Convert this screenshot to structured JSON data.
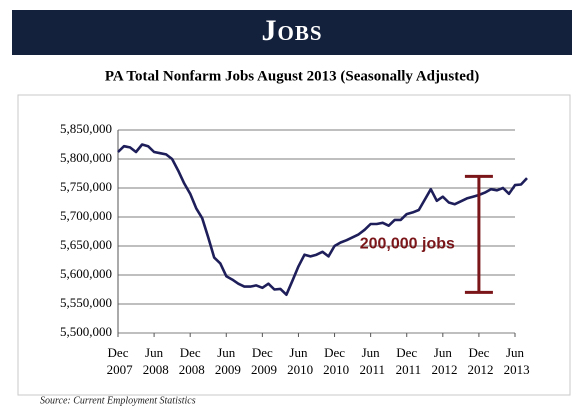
{
  "header": {
    "title": "Jobs"
  },
  "chart_data": {
    "type": "line",
    "title": "PA Total Nonfarm Jobs August 2013 (Seasonally Adjusted)",
    "categories": [
      "Dec 2007",
      null,
      null,
      null,
      null,
      null,
      "Jun 2008",
      null,
      null,
      null,
      null,
      null,
      "Dec 2008",
      null,
      null,
      null,
      null,
      null,
      "Jun 2009",
      null,
      null,
      null,
      null,
      null,
      "Dec 2009",
      null,
      null,
      null,
      null,
      null,
      "Jun 2010",
      null,
      null,
      null,
      null,
      null,
      "Dec 2010",
      null,
      null,
      null,
      null,
      null,
      "Jun 2011",
      null,
      null,
      null,
      null,
      null,
      "Dec 2011",
      null,
      null,
      null,
      null,
      null,
      "Jun 2012",
      null,
      null,
      null,
      null,
      null,
      "Dec 2012",
      null,
      null,
      null,
      null,
      null,
      "Jun 2013",
      null,
      null
    ],
    "series": [
      {
        "name": "PA Total Nonfarm Jobs",
        "color": "#1e1e5a",
        "values": [
          5812000,
          5822000,
          5820000,
          5812000,
          5825000,
          5822000,
          5812000,
          5810000,
          5808000,
          5800000,
          5780000,
          5758000,
          5740000,
          5715000,
          5698000,
          5665000,
          5630000,
          5620000,
          5598000,
          5592000,
          5585000,
          5580000,
          5580000,
          5582000,
          5578000,
          5585000,
          5575000,
          5576000,
          5566000,
          5590000,
          5615000,
          5635000,
          5632000,
          5635000,
          5640000,
          5632000,
          5650000,
          5656000,
          5660000,
          5665000,
          5670000,
          5678000,
          5688000,
          5688000,
          5690000,
          5685000,
          5695000,
          5695000,
          5705000,
          5708000,
          5712000,
          5730000,
          5748000,
          5728000,
          5735000,
          5725000,
          5722000,
          5727000,
          5732000,
          5735000,
          5738000,
          5742000,
          5748000,
          5746000,
          5750000,
          5740000,
          5755000,
          5756000,
          5767000
        ]
      }
    ],
    "ylim": [
      5500000,
      5850000
    ],
    "yticks": [
      {
        "value": 5500000,
        "label": "5,500,000"
      },
      {
        "value": 5550000,
        "label": "5,550,000"
      },
      {
        "value": 5600000,
        "label": "5,600,000"
      },
      {
        "value": 5650000,
        "label": "5,650,000"
      },
      {
        "value": 5700000,
        "label": "5,700,000"
      },
      {
        "value": 5750000,
        "label": "5,750,000"
      },
      {
        "value": 5800000,
        "label": "5,800,000"
      },
      {
        "value": 5850000,
        "label": "5,850,000"
      }
    ],
    "grid": true,
    "annotation": {
      "text": "200,000 jobs",
      "from": 5570000,
      "to": 5770000,
      "color": "#7a1519"
    },
    "source": "Source:  Current Employment Statistics"
  }
}
